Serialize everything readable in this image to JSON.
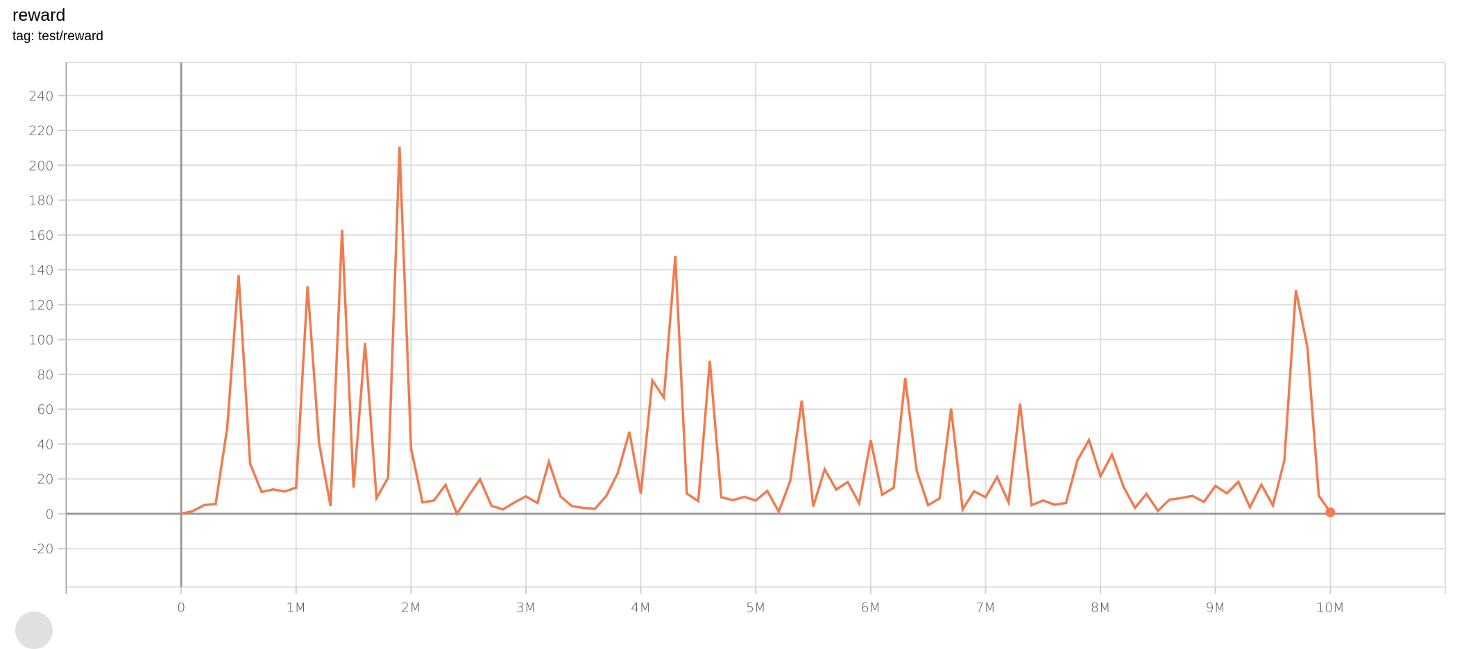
{
  "card": {
    "title": "reward",
    "tag": "tag: test/reward"
  },
  "colors": {
    "series": "#f07b4f",
    "grid": "#dddddd",
    "zero_axis": "#999999"
  },
  "chart_data": {
    "type": "line",
    "title": "reward",
    "subtitle": "tag: test/reward",
    "xlabel": "",
    "ylabel": "",
    "xlim": [
      -1000000,
      11000000
    ],
    "ylim": [
      -42,
      259
    ],
    "grid": true,
    "x_ticks": [
      0,
      1000000,
      2000000,
      3000000,
      4000000,
      5000000,
      6000000,
      7000000,
      8000000,
      9000000,
      10000000
    ],
    "x_tick_labels": [
      "0",
      "1M",
      "2M",
      "3M",
      "4M",
      "5M",
      "6M",
      "7M",
      "8M",
      "9M",
      "10M"
    ],
    "y_ticks": [
      240,
      220,
      200,
      180,
      160,
      140,
      120,
      100,
      80,
      60,
      40,
      20,
      0,
      -20
    ],
    "y_tick_labels": [
      "240",
      "220",
      "200",
      "180",
      "160",
      "140",
      "120",
      "100",
      "80",
      "60",
      "40",
      "20",
      "0",
      "-20"
    ],
    "x_step": 100000,
    "series": [
      {
        "values": [
          0,
          1.5,
          5,
          5.6,
          49,
          137,
          28.7,
          12.5,
          14,
          12.8,
          15,
          130.6,
          40.4,
          4.4,
          163,
          15,
          98,
          9,
          20.6,
          210.6,
          37.5,
          6.5,
          7.6,
          16.6,
          0,
          10.2,
          19.8,
          4.6,
          2.5,
          6.5,
          10,
          6.2,
          29.8,
          10,
          4.4,
          3.3,
          2.9,
          10.2,
          23.5,
          47,
          11.5,
          76.5,
          66.6,
          148,
          11.5,
          7.3,
          87.8,
          9.5,
          7.8,
          9.7,
          7.6,
          13.1,
          1.2,
          18.8,
          64.9,
          4.2,
          25.5,
          13.9,
          18.2,
          6,
          42.2,
          10.9,
          14.9,
          77.9,
          24.8,
          4.9,
          8.9,
          60.3,
          2.5,
          12.9,
          9.5,
          21.1,
          6.5,
          63.3,
          4.9,
          7.6,
          5.2,
          6.2,
          30.8,
          42.3,
          21.5,
          34,
          15.4,
          3.4,
          11.4,
          1.7,
          8.1,
          9,
          10.3,
          6.8,
          16,
          11.7,
          18.3,
          3.7,
          16.7,
          4.8,
          30.6,
          128.4,
          95.6,
          10.3,
          0.8
        ]
      }
    ]
  }
}
